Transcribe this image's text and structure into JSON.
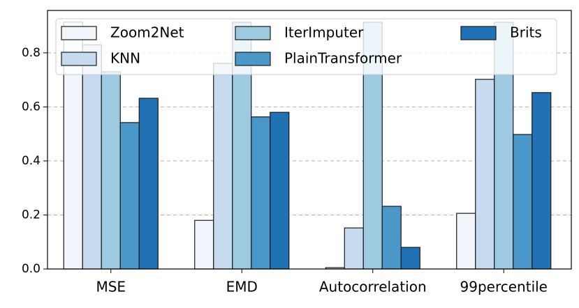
{
  "chart_data": {
    "type": "bar",
    "categories": [
      "MSE",
      "EMD",
      "Autocorrelation",
      "99percentile"
    ],
    "series": [
      {
        "name": "Zoom2Net",
        "color": "#f0f6fc",
        "values": [
          0.914,
          0.18,
          0.005,
          0.206
        ]
      },
      {
        "name": "KNN",
        "color": "#c6dbef",
        "values": [
          0.83,
          0.761,
          0.152,
          0.702
        ]
      },
      {
        "name": "IterImputer",
        "color": "#9ecae1",
        "values": [
          0.73,
          0.913,
          0.913,
          0.913
        ]
      },
      {
        "name": "PlainTransformer",
        "color": "#4a98c9",
        "values": [
          0.542,
          0.563,
          0.232,
          0.498
        ]
      },
      {
        "name": "Brits",
        "color": "#2171b5",
        "values": [
          0.632,
          0.58,
          0.08,
          0.653
        ]
      }
    ],
    "ylim": [
      0,
      0.957
    ],
    "yticks": [
      {
        "value": 0,
        "label": "0.0"
      },
      {
        "value": 0.2,
        "label": "0.2"
      },
      {
        "value": 0.4,
        "label": "0.4"
      },
      {
        "value": 0.6,
        "label": "0.6"
      },
      {
        "value": 0.8,
        "label": "0.8"
      }
    ],
    "grid": true,
    "legend": "top"
  }
}
